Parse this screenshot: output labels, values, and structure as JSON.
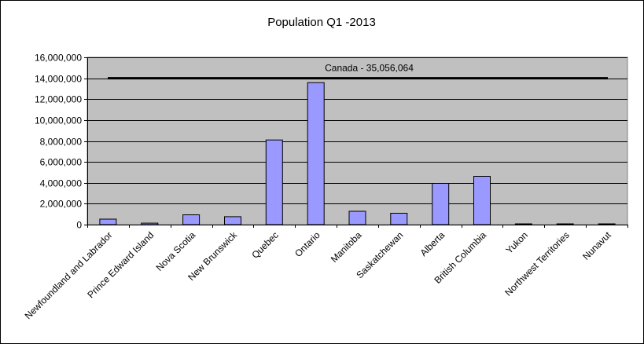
{
  "chart_data": {
    "type": "bar",
    "title": "Population Q1 -2013",
    "xlabel": "",
    "ylabel": "",
    "ylim": [
      0,
      16000000
    ],
    "yticks": [
      "0",
      "2,000,000",
      "4,000,000",
      "6,000,000",
      "8,000,000",
      "10,000,000",
      "12,000,000",
      "14,000,000",
      "16,000,000"
    ],
    "ytick_values": [
      0,
      2000000,
      4000000,
      6000000,
      8000000,
      10000000,
      12000000,
      14000000,
      16000000
    ],
    "grid": true,
    "categories": [
      "Newfoundland and Labrador",
      "Prince Edward Island",
      "Nova Scotia",
      "New Brunswick",
      "Quebec",
      "Ontario",
      "Manitoba",
      "Saskatchewan",
      "Alberta",
      "British Columbia",
      "Yukon",
      "Northwest Territories",
      "Nunavut"
    ],
    "values": [
      527000,
      146000,
      941000,
      756000,
      8099000,
      13582000,
      1275000,
      1087000,
      3940000,
      4616000,
      36500,
      43500,
      35000
    ],
    "reference_line": {
      "value": 14000000,
      "label": "Canada - 35,056,064"
    },
    "colors": {
      "bar_fill": "#9999ff",
      "bar_stroke": "#000000",
      "plot_bg": "#c0c0c0",
      "grid": "#000000",
      "ref_line": "#000000"
    }
  }
}
